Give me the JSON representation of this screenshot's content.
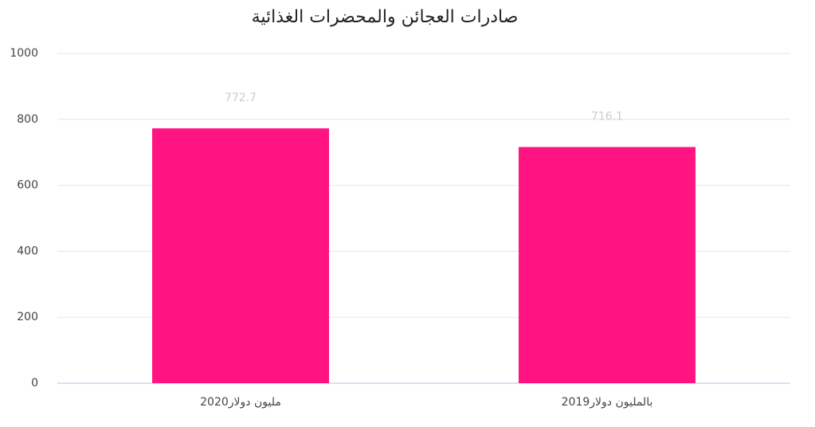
{
  "chart_data": {
    "type": "bar",
    "title": "صادرات العجائن والمحضرات الغذائية",
    "categories": [
      "مليون دولار2020",
      "بالمليون دولار2019"
    ],
    "values": [
      772.7,
      716.1
    ],
    "color": "#ff1481",
    "ylim": [
      0,
      1000
    ],
    "yticks": [
      0,
      200,
      400,
      600,
      800,
      1000
    ],
    "grid": true
  }
}
